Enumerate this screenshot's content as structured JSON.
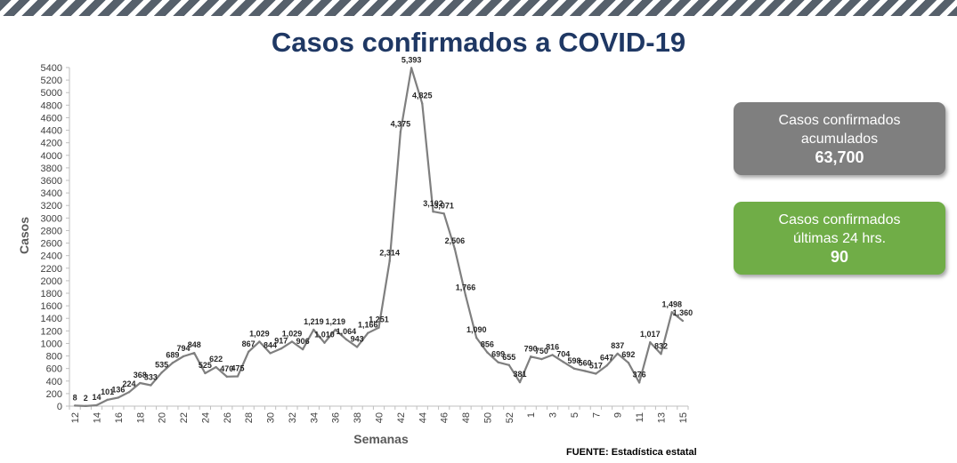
{
  "title": "Casos confirmados a COVID-19",
  "summary_boxes": [
    {
      "line1": "Casos confirmados",
      "line2": "acumulados",
      "value": "63,700",
      "color": "#7f7f7f"
    },
    {
      "line1": "Casos confirmados",
      "line2": "últimas 24 hrs.",
      "value": "90",
      "color": "#70ad47"
    }
  ],
  "source": "FUENTE: Estadística estatal",
  "chart_data": {
    "type": "line",
    "xlabel": "Semanas",
    "ylabel": "Casos",
    "ylim": [
      0,
      5400
    ],
    "ytick_step": 200,
    "line_color": "#7f7f7f",
    "x_tick_labels": [
      "12",
      "14",
      "16",
      "18",
      "20",
      "22",
      "24",
      "26",
      "28",
      "30",
      "32",
      "34",
      "36",
      "38",
      "40",
      "42",
      "44",
      "46",
      "48",
      "50",
      "52",
      "1",
      "3",
      "5",
      "7",
      "9",
      "11",
      "13",
      "15"
    ],
    "x": [
      "12",
      "13",
      "14",
      "15",
      "16",
      "17",
      "18",
      "19",
      "20",
      "21",
      "22",
      "23",
      "24",
      "25",
      "26",
      "27",
      "28",
      "29",
      "30",
      "31",
      "32",
      "33",
      "34",
      "35",
      "36",
      "37",
      "38",
      "39",
      "40",
      "41",
      "42",
      "43",
      "44",
      "45",
      "46",
      "47",
      "48",
      "49",
      "50",
      "51",
      "52",
      "53",
      "1",
      "2",
      "3",
      "4",
      "5",
      "6",
      "7",
      "8",
      "9",
      "10",
      "11",
      "12",
      "13",
      "14",
      "15"
    ],
    "values": [
      8,
      2,
      14,
      101,
      136,
      224,
      368,
      333,
      535,
      689,
      794,
      848,
      525,
      622,
      470,
      475,
      867,
      1029,
      844,
      917,
      1029,
      906,
      1219,
      1010,
      1219,
      1064,
      943,
      1166,
      1251,
      2314,
      4375,
      5393,
      4825,
      3102,
      3071,
      2506,
      1766,
      1090,
      856,
      699,
      655,
      381,
      790,
      750,
      816,
      704,
      598,
      560,
      517,
      647,
      837,
      692,
      376,
      1017,
      832,
      1498,
      1360
    ],
    "data_labels": [
      "8",
      "2",
      "14",
      "101",
      "136",
      "224",
      "368",
      "333",
      "535",
      "689",
      "794",
      "848",
      "525",
      "622",
      "470",
      "475",
      "867",
      "1,029",
      "844",
      "917",
      "1,029",
      "906",
      "1,219",
      "1,010",
      "1,219",
      "1,064",
      "943",
      "1,166",
      "1,251",
      "2,314",
      "4,375",
      "5,393",
      "4,825",
      "3,102",
      "3,071",
      "2,506",
      "1,766",
      "1,090",
      "856",
      "699",
      "655",
      "381",
      "790",
      "750",
      "816",
      "704",
      "598",
      "560",
      "517",
      "647",
      "837",
      "692",
      "376",
      "1,017",
      "832",
      "1,498",
      "1,360"
    ]
  }
}
